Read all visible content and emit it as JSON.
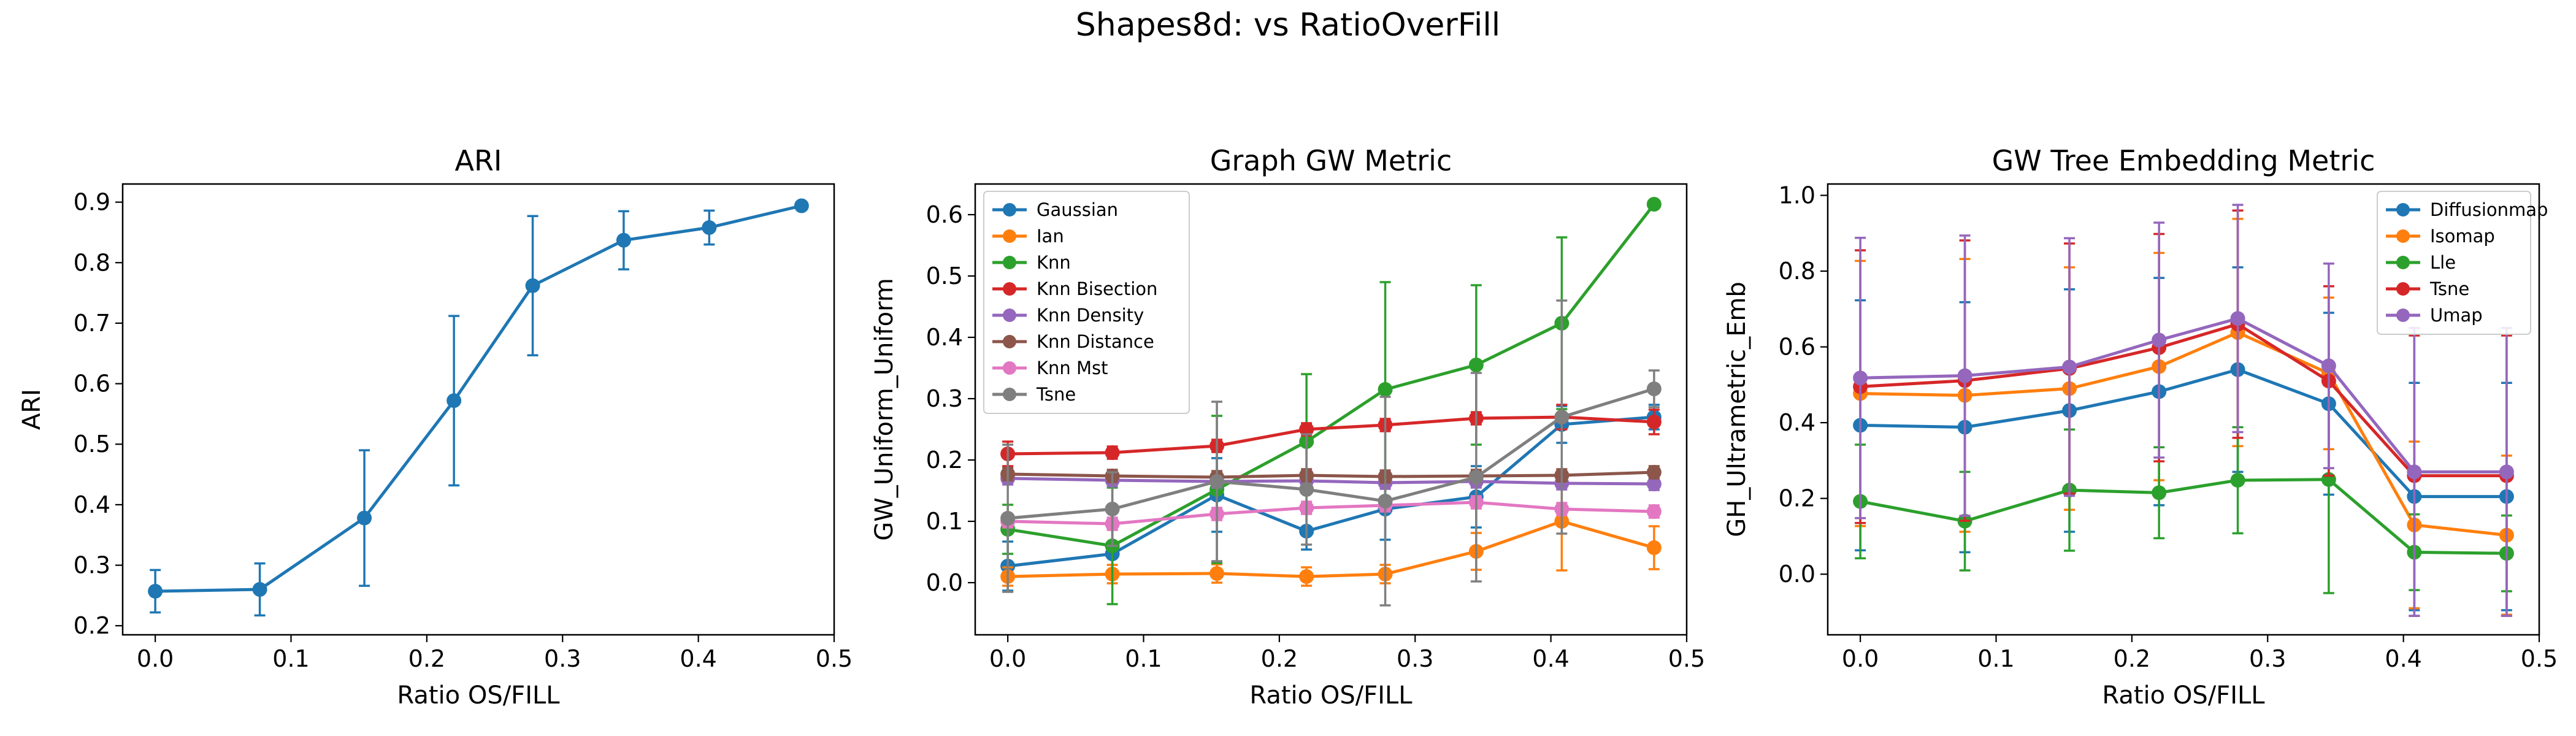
{
  "figure": {
    "suptitle": "Shapes8d: vs RatioOverFill"
  },
  "chart_data": [
    {
      "type": "line",
      "title": "ARI",
      "xlabel": "Ratio OS/FILL",
      "ylabel": "ARI",
      "xlim": [
        -0.024,
        0.5
      ],
      "ylim": [
        0.185,
        0.93
      ],
      "xticks": [
        0.0,
        0.1,
        0.2,
        0.3,
        0.4,
        0.5
      ],
      "yticks": [
        0.2,
        0.3,
        0.4,
        0.5,
        0.6,
        0.7,
        0.8,
        0.9
      ],
      "x": [
        0.0,
        0.077,
        0.154,
        0.22,
        0.278,
        0.345,
        0.408,
        0.476
      ],
      "legend": null,
      "series": [
        {
          "color": "#1f77b4",
          "values": [
            0.257,
            0.26,
            0.378,
            0.572,
            0.762,
            0.837,
            0.858,
            0.894
          ],
          "errors": [
            0.035,
            0.043,
            0.112,
            0.14,
            0.115,
            0.048,
            0.028,
            0.0
          ]
        }
      ]
    },
    {
      "type": "line",
      "title": "Graph GW Metric",
      "xlabel": "Ratio OS/FILL",
      "ylabel": "GW_Uniform_Uniform",
      "xlim": [
        -0.024,
        0.5
      ],
      "ylim": [
        -0.085,
        0.65
      ],
      "xticks": [
        0.0,
        0.1,
        0.2,
        0.3,
        0.4,
        0.5
      ],
      "yticks": [
        0.0,
        0.1,
        0.2,
        0.3,
        0.4,
        0.5,
        0.6
      ],
      "x": [
        0.0,
        0.077,
        0.154,
        0.22,
        0.278,
        0.345,
        0.408,
        0.476
      ],
      "legend": "upper-left",
      "series": [
        {
          "name": "Gaussian",
          "color": "#1f77b4",
          "values": [
            0.027,
            0.047,
            0.143,
            0.084,
            0.12,
            0.14,
            0.258,
            0.27
          ],
          "errors": [
            0.04,
            0.04,
            0.06,
            0.03,
            0.05,
            0.05,
            0.03,
            0.02
          ]
        },
        {
          "name": "Ian",
          "color": "#ff7f0e",
          "values": [
            0.01,
            0.014,
            0.015,
            0.01,
            0.014,
            0.051,
            0.1,
            0.057
          ],
          "errors": [
            0.015,
            0.015,
            0.015,
            0.015,
            0.015,
            0.03,
            0.08,
            0.035
          ]
        },
        {
          "name": "Knn",
          "color": "#2ca02c",
          "values": [
            0.087,
            0.06,
            0.152,
            0.23,
            0.315,
            0.355,
            0.423,
            0.617
          ],
          "errors": [
            0.04,
            0.095,
            0.12,
            0.11,
            0.175,
            0.13,
            0.14,
            0.0
          ]
        },
        {
          "name": "Knn Bisection",
          "color": "#d62728",
          "values": [
            0.21,
            0.212,
            0.223,
            0.25,
            0.257,
            0.268,
            0.27,
            0.262
          ],
          "errors": [
            0.02,
            0.01,
            0.01,
            0.01,
            0.01,
            0.01,
            0.02,
            0.02
          ]
        },
        {
          "name": "Knn Density",
          "color": "#9467bd",
          "values": [
            0.17,
            0.167,
            0.165,
            0.166,
            0.163,
            0.165,
            0.162,
            0.161
          ],
          "errors": [
            0.01,
            0.01,
            0.01,
            0.01,
            0.01,
            0.01,
            0.01,
            0.01
          ]
        },
        {
          "name": "Knn Distance",
          "color": "#8c564b",
          "values": [
            0.177,
            0.174,
            0.172,
            0.175,
            0.173,
            0.174,
            0.175,
            0.18
          ],
          "errors": [
            0.01,
            0.01,
            0.01,
            0.01,
            0.01,
            0.01,
            0.01,
            0.01
          ]
        },
        {
          "name": "Knn Mst",
          "color": "#e377c2",
          "values": [
            0.1,
            0.096,
            0.112,
            0.122,
            0.126,
            0.131,
            0.12,
            0.116
          ],
          "errors": [
            0.01,
            0.01,
            0.01,
            0.01,
            0.01,
            0.01,
            0.01,
            0.01
          ]
        },
        {
          "name": "Tsne",
          "color": "#7f7f7f",
          "values": [
            0.105,
            0.12,
            0.165,
            0.152,
            0.133,
            0.172,
            0.27,
            0.316
          ],
          "errors": [
            0.12,
            0.06,
            0.13,
            0.09,
            0.17,
            0.17,
            0.19,
            0.03
          ]
        }
      ]
    },
    {
      "type": "line",
      "title": "GW Tree Embedding Metric",
      "xlabel": "Ratio OS/FILL",
      "ylabel": "GH_Ultrametric_Emb",
      "xlim": [
        -0.024,
        0.5
      ],
      "ylim": [
        -0.16,
        1.03
      ],
      "xticks": [
        0.0,
        0.1,
        0.2,
        0.3,
        0.4,
        0.5
      ],
      "yticks": [
        0.0,
        0.2,
        0.4,
        0.6,
        0.8,
        1.0
      ],
      "x": [
        0.0,
        0.077,
        0.154,
        0.22,
        0.278,
        0.345,
        0.408,
        0.476
      ],
      "legend": "upper-right",
      "series": [
        {
          "name": "Diffusionmap",
          "color": "#1f77b4",
          "values": [
            0.393,
            0.388,
            0.432,
            0.482,
            0.54,
            0.45,
            0.205,
            0.205
          ],
          "errors": [
            0.33,
            0.33,
            0.32,
            0.3,
            0.27,
            0.24,
            0.3,
            0.3
          ]
        },
        {
          "name": "Isomap",
          "color": "#ff7f0e",
          "values": [
            0.477,
            0.472,
            0.49,
            0.548,
            0.638,
            0.53,
            0.13,
            0.103
          ],
          "errors": [
            0.35,
            0.36,
            0.32,
            0.3,
            0.3,
            0.2,
            0.22,
            0.21
          ]
        },
        {
          "name": "Lle",
          "color": "#2ca02c",
          "values": [
            0.192,
            0.14,
            0.222,
            0.215,
            0.248,
            0.25,
            0.058,
            0.055
          ],
          "errors": [
            0.15,
            0.13,
            0.16,
            0.12,
            0.14,
            0.3,
            0.1,
            0.1
          ]
        },
        {
          "name": "Tsne",
          "color": "#d62728",
          "values": [
            0.495,
            0.511,
            0.543,
            0.598,
            0.66,
            0.51,
            0.26,
            0.26
          ],
          "errors": [
            0.36,
            0.37,
            0.33,
            0.3,
            0.3,
            0.25,
            0.37,
            0.37
          ]
        },
        {
          "name": "Umap",
          "color": "#9467bd",
          "values": [
            0.518,
            0.524,
            0.547,
            0.618,
            0.675,
            0.55,
            0.27,
            0.27
          ],
          "errors": [
            0.37,
            0.37,
            0.34,
            0.31,
            0.3,
            0.27,
            0.38,
            0.38
          ]
        }
      ]
    }
  ]
}
